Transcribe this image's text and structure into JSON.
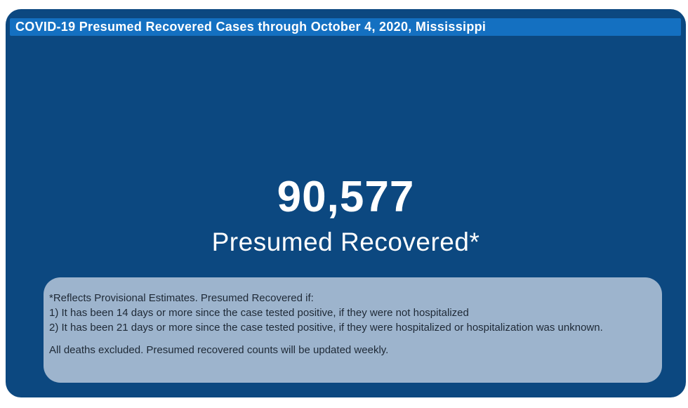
{
  "colors": {
    "page_bg": "#ffffff",
    "panel_bg": "#0c4880",
    "title_bar_bg": "#1470c1",
    "title_text": "#ffffff",
    "kpi_text": "#ffffff",
    "footnote_bg": "#9db4cd",
    "footnote_text": "#1e2936"
  },
  "header": {
    "title": "COVID-19 Presumed Recovered Cases through October 4, 2020, Mississippi"
  },
  "kpi": {
    "value": "90,577",
    "label": "Presumed Recovered*"
  },
  "footnote": {
    "lines": [
      "*Reflects Provisional Estimates. Presumed Recovered if:",
      "1) It has been 14 days or more since the case tested positive, if they were not hospitalized",
      "2) It has been 21 days or more since the case tested positive, if they were hospitalized or hospitalization was unknown."
    ],
    "note": "All deaths excluded. Presumed recovered counts will be updated weekly."
  },
  "chart_data": {
    "type": "table",
    "title": "COVID-19 Presumed Recovered Cases through October 4, 2020, Mississippi",
    "categories": [
      "Presumed Recovered*"
    ],
    "values": [
      90577
    ],
    "annotations": [
      "*Reflects Provisional Estimates. Presumed Recovered if:",
      "1) It has been 14 days or more since the case tested positive, if they were not hospitalized",
      "2) It has been 21 days or more since the case tested positive, if they were hospitalized or hospitalization was unknown.",
      "All deaths excluded. Presumed recovered counts will be updated weekly."
    ]
  }
}
